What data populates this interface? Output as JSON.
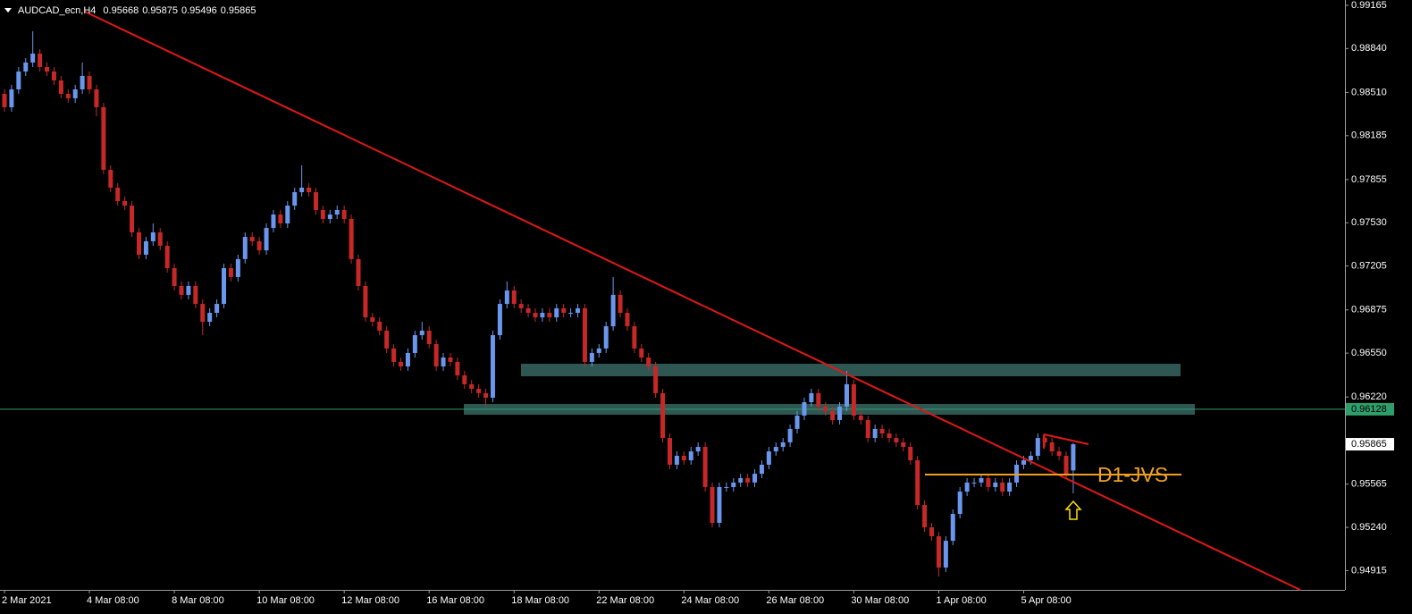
{
  "chart_data": {
    "type": "candlestick",
    "title": "AUDCAD_ecn,H4",
    "categories": [
      "2 Mar 2021",
      null,
      null,
      null,
      null,
      null,
      null,
      null,
      null,
      null,
      null,
      null,
      "4 Mar 08:00",
      null,
      null,
      null,
      null,
      null,
      null,
      null,
      null,
      null,
      null,
      null,
      "8 Mar 08:00",
      null,
      null,
      null,
      null,
      null,
      null,
      null,
      null,
      null,
      null,
      null,
      "10 Mar 08:00",
      null,
      null,
      null,
      null,
      null,
      null,
      null,
      null,
      null,
      null,
      null,
      "12 Mar 08:00",
      null,
      null,
      null,
      null,
      null,
      null,
      null,
      null,
      null,
      null,
      null,
      "16 Mar 08:00",
      null,
      null,
      null,
      null,
      null,
      null,
      null,
      null,
      null,
      null,
      null,
      "18 Mar 08:00",
      null,
      null,
      null,
      null,
      null,
      null,
      null,
      null,
      null,
      null,
      null,
      "22 Mar 08:00",
      null,
      null,
      null,
      null,
      null,
      null,
      null,
      null,
      null,
      null,
      null,
      "24 Mar 08:00",
      null,
      null,
      null,
      null,
      null,
      null,
      null,
      null,
      null,
      null,
      null,
      "26 Mar 08:00",
      null,
      null,
      null,
      null,
      null,
      null,
      null,
      null,
      null,
      null,
      null,
      "30 Mar 08:00",
      null,
      null,
      null,
      null,
      null,
      null,
      null,
      null,
      null,
      null,
      null,
      "1 Apr 08:00",
      null,
      null,
      null,
      null,
      null,
      null,
      null,
      null,
      null,
      null,
      null,
      "5 Apr 08:00",
      null,
      null,
      null,
      null,
      null,
      null,
      null
    ],
    "open": [
      0.98499,
      0.98399,
      0.98533,
      0.98667,
      0.98735,
      0.98802,
      0.98701,
      0.98667,
      0.986,
      0.98499,
      0.98466,
      0.98533,
      0.98634,
      0.98533,
      0.98399,
      0.97928,
      0.97794,
      0.97693,
      0.97659,
      0.97458,
      0.9729,
      0.97391,
      0.97458,
      0.97357,
      0.97189,
      0.97055,
      0.96988,
      0.97055,
      0.9692,
      0.96786,
      0.96853,
      0.9692,
      0.97189,
      0.97122,
      0.97257,
      0.97424,
      0.97391,
      0.97323,
      0.97491,
      0.97592,
      0.97525,
      0.97659,
      0.9776,
      0.97794,
      0.9776,
      0.97626,
      0.97559,
      0.97592,
      0.97626,
      0.97559,
      0.97257,
      0.97055,
      0.96819,
      0.96786,
      0.96719,
      0.96585,
      0.96484,
      0.9645,
      0.96551,
      0.96685,
      0.96719,
      0.96618,
      0.9645,
      0.96517,
      0.96484,
      0.96383,
      0.96316,
      0.96282,
      0.96249,
      0.96215,
      0.96685,
      0.9692,
      0.97021,
      0.9692,
      0.96887,
      0.96853,
      0.96819,
      0.96853,
      0.96819,
      0.96887,
      0.96853,
      0.96853,
      0.96887,
      0.96484,
      0.96551,
      0.96585,
      0.96752,
      0.96988,
      0.96853,
      0.96752,
      0.96585,
      0.96517,
      0.9645,
      0.96249,
      0.95912,
      0.95711,
      0.95778,
      0.95744,
      0.95811,
      0.95845,
      0.95543,
      0.95274,
      0.95543,
      0.95543,
      0.95577,
      0.9561,
      0.95577,
      0.95643,
      0.95711,
      0.95811,
      0.95845,
      0.95879,
      0.9598,
      0.9608,
      0.96181,
      0.96249,
      0.96148,
      0.96114,
      0.96047,
      0.96148,
      0.96316,
      0.9608,
      0.96047,
      0.95912,
      0.9598,
      0.95946,
      0.95912,
      0.95879,
      0.95845,
      0.95744,
      0.95408,
      0.9524,
      0.95173,
      0.94938,
      0.95139,
      0.95341,
      0.95509,
      0.95577,
      0.95577,
      0.9561,
      0.95543,
      0.95577,
      0.95509,
      0.95577,
      0.95711,
      0.95744,
      0.95778,
      0.95912,
      0.95879,
      0.95811,
      0.95778,
      0.95668
    ],
    "high": [
      0.98533,
      0.98567,
      0.98701,
      0.98768,
      0.9897,
      0.98835,
      0.98735,
      0.98701,
      0.98634,
      0.98533,
      0.98567,
      0.98735,
      0.98667,
      0.98567,
      0.98432,
      0.97962,
      0.97827,
      0.97727,
      0.97693,
      0.97491,
      0.97424,
      0.97525,
      0.97491,
      0.97391,
      0.97223,
      0.97089,
      0.97089,
      0.97089,
      0.96954,
      0.96887,
      0.96954,
      0.97223,
      0.97223,
      0.9729,
      0.97458,
      0.97458,
      0.97424,
      0.97525,
      0.97626,
      0.97626,
      0.97693,
      0.97794,
      0.97962,
      0.97827,
      0.97794,
      0.97659,
      0.97626,
      0.97659,
      0.97659,
      0.97592,
      0.9729,
      0.97089,
      0.96853,
      0.96819,
      0.96752,
      0.96618,
      0.96517,
      0.96585,
      0.96719,
      0.96786,
      0.96752,
      0.96651,
      0.96551,
      0.96551,
      0.96517,
      0.96417,
      0.96349,
      0.96316,
      0.96282,
      0.96719,
      0.96954,
      0.97089,
      0.97055,
      0.96954,
      0.9692,
      0.96887,
      0.96887,
      0.96887,
      0.9692,
      0.9692,
      0.96887,
      0.9692,
      0.9692,
      0.96585,
      0.96618,
      0.96786,
      0.97122,
      0.97021,
      0.96887,
      0.96786,
      0.96618,
      0.96551,
      0.96484,
      0.96282,
      0.95946,
      0.95811,
      0.95811,
      0.95845,
      0.95879,
      0.95879,
      0.95577,
      0.95577,
      0.95577,
      0.9561,
      0.95643,
      0.95643,
      0.95677,
      0.95744,
      0.95845,
      0.95879,
      0.95912,
      0.96013,
      0.96114,
      0.96215,
      0.96282,
      0.96282,
      0.96181,
      0.96148,
      0.96181,
      0.96417,
      0.96349,
      0.96114,
      0.9608,
      0.96013,
      0.96013,
      0.9598,
      0.95946,
      0.95912,
      0.95879,
      0.95778,
      0.95442,
      0.95274,
      0.95206,
      0.95173,
      0.95375,
      0.95543,
      0.9561,
      0.9561,
      0.95643,
      0.95643,
      0.9561,
      0.9561,
      0.9561,
      0.95744,
      0.95778,
      0.95811,
      0.95946,
      0.95946,
      0.95912,
      0.95845,
      0.95811,
      0.95875
    ],
    "low": [
      0.98365,
      0.98365,
      0.98499,
      0.98634,
      0.98701,
      0.98667,
      0.98634,
      0.98567,
      0.98466,
      0.98432,
      0.98432,
      0.98499,
      0.98499,
      0.98331,
      0.97895,
      0.9776,
      0.97659,
      0.97626,
      0.97424,
      0.97257,
      0.97257,
      0.97357,
      0.97323,
      0.97156,
      0.97021,
      0.96954,
      0.96954,
      0.96887,
      0.96685,
      0.96752,
      0.96819,
      0.96887,
      0.97089,
      0.97089,
      0.97223,
      0.97357,
      0.9729,
      0.9729,
      0.97458,
      0.97491,
      0.97491,
      0.97626,
      0.97727,
      0.97727,
      0.97592,
      0.97525,
      0.97525,
      0.97559,
      0.97525,
      0.97223,
      0.97021,
      0.96786,
      0.96752,
      0.96685,
      0.96551,
      0.9645,
      0.96417,
      0.96417,
      0.96517,
      0.96651,
      0.96585,
      0.96417,
      0.96417,
      0.9645,
      0.96349,
      0.96282,
      0.96249,
      0.96215,
      0.96148,
      0.96181,
      0.96651,
      0.96887,
      0.96887,
      0.96853,
      0.96819,
      0.96786,
      0.96786,
      0.96786,
      0.96786,
      0.96819,
      0.96819,
      0.96819,
      0.9645,
      0.9645,
      0.96517,
      0.96551,
      0.96719,
      0.96819,
      0.96719,
      0.96551,
      0.96484,
      0.96417,
      0.96215,
      0.95879,
      0.95677,
      0.95677,
      0.95711,
      0.95711,
      0.95778,
      0.95509,
      0.9524,
      0.9524,
      0.95509,
      0.95509,
      0.95543,
      0.95543,
      0.95543,
      0.9561,
      0.95677,
      0.95778,
      0.95811,
      0.95845,
      0.95946,
      0.96047,
      0.96148,
      0.96114,
      0.9608,
      0.96013,
      0.96013,
      0.96114,
      0.96047,
      0.96013,
      0.95879,
      0.95879,
      0.95912,
      0.95879,
      0.95845,
      0.95811,
      0.95711,
      0.95375,
      0.95206,
      0.95139,
      0.9487,
      0.94904,
      0.95106,
      0.95307,
      0.95475,
      0.95543,
      0.95543,
      0.95509,
      0.95509,
      0.95475,
      0.95475,
      0.95543,
      0.95677,
      0.95711,
      0.95744,
      0.95845,
      0.95778,
      0.95744,
      0.9561,
      0.95496
    ],
    "close": [
      0.98399,
      0.98533,
      0.98667,
      0.98735,
      0.98802,
      0.98701,
      0.98667,
      0.986,
      0.98499,
      0.98466,
      0.98533,
      0.98634,
      0.98533,
      0.98399,
      0.97928,
      0.97794,
      0.97693,
      0.97659,
      0.97458,
      0.9729,
      0.97391,
      0.97458,
      0.97357,
      0.97189,
      0.97055,
      0.96988,
      0.97055,
      0.9692,
      0.96786,
      0.96853,
      0.9692,
      0.97189,
      0.97122,
      0.97257,
      0.97424,
      0.97391,
      0.97323,
      0.97491,
      0.97592,
      0.97525,
      0.97659,
      0.9776,
      0.97794,
      0.9776,
      0.97626,
      0.97559,
      0.97592,
      0.97626,
      0.97559,
      0.97257,
      0.97055,
      0.96819,
      0.96786,
      0.96719,
      0.96585,
      0.96484,
      0.9645,
      0.96551,
      0.96685,
      0.96719,
      0.96618,
      0.9645,
      0.96517,
      0.96484,
      0.96383,
      0.96316,
      0.96282,
      0.96249,
      0.96215,
      0.96685,
      0.9692,
      0.97021,
      0.9692,
      0.96887,
      0.96853,
      0.96819,
      0.96853,
      0.96819,
      0.96887,
      0.96853,
      0.96853,
      0.96887,
      0.96484,
      0.96551,
      0.96585,
      0.96752,
      0.96988,
      0.96853,
      0.96752,
      0.96585,
      0.96517,
      0.9645,
      0.96249,
      0.95912,
      0.95711,
      0.95778,
      0.95744,
      0.95811,
      0.95845,
      0.95543,
      0.95274,
      0.95543,
      0.95543,
      0.95577,
      0.9561,
      0.95577,
      0.95643,
      0.95711,
      0.95811,
      0.95845,
      0.95879,
      0.9598,
      0.9608,
      0.96181,
      0.96249,
      0.96148,
      0.96114,
      0.96047,
      0.96148,
      0.96316,
      0.9608,
      0.96047,
      0.95912,
      0.9598,
      0.95946,
      0.95912,
      0.95879,
      0.95845,
      0.95744,
      0.95408,
      0.9524,
      0.95173,
      0.94938,
      0.95139,
      0.95341,
      0.95509,
      0.95577,
      0.95577,
      0.9561,
      0.95543,
      0.95577,
      0.95509,
      0.95577,
      0.95711,
      0.95744,
      0.95778,
      0.95912,
      0.95879,
      0.95811,
      0.95778,
      0.95643,
      0.95865
    ],
    "up_color": "#6a96ee",
    "down_color": "#c62828",
    "ylim": [
      0.9477,
      0.99205
    ],
    "yticks": [
      0.99165,
      {
        "value": 0.9884,
        "label": "0.98840"
      },
      {
        "value": 0.9851,
        "label": "0.98510"
      },
      0.98185,
      0.97855,
      {
        "value": 0.9753,
        "label": "0.97530"
      },
      0.97205,
      0.96875,
      {
        "value": 0.9655,
        "label": "0.96550"
      },
      {
        "value": 0.9622,
        "label": "0.96220"
      },
      0.95565,
      {
        "value": 0.9524,
        "label": "0.95240"
      },
      0.94915
    ],
    "hline": {
      "value": 0.96128,
      "color": "#2f9e6a"
    },
    "annotation": "D1-JVS"
  }
}
